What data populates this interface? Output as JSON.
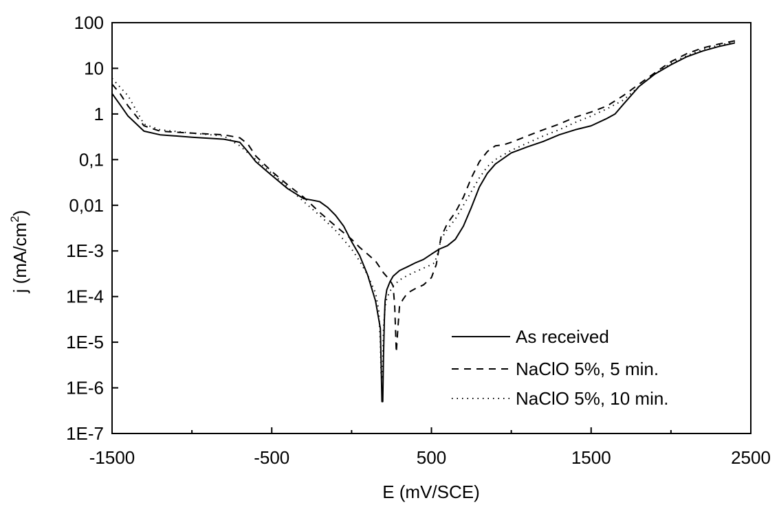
{
  "chart_data": {
    "type": "line",
    "xlabel": "E (mV/SCE)",
    "ylabel": "j (mA/cm²)",
    "ylabel_main": "j (mA/cm",
    "ylabel_sup": "2",
    "ylabel_close": ")",
    "xlim": [
      -1500,
      2500
    ],
    "ylim": [
      1e-07,
      100
    ],
    "yscale": "log",
    "grid": false,
    "legend_position": "bottom-right",
    "x_ticks": [
      -1500,
      -500,
      500,
      1500,
      2500
    ],
    "x_tick_labels": [
      "-1500",
      "-500",
      "500",
      "1500",
      "2500"
    ],
    "y_ticks": [
      1e-07,
      1e-06,
      1e-05,
      0.0001,
      0.001,
      0.01,
      0.1,
      1,
      10,
      100
    ],
    "y_tick_labels": [
      "1E-7",
      "1E-6",
      "1E-5",
      "1E-4",
      "1E-3",
      "0,01",
      "0,1",
      "1",
      "10",
      "100"
    ],
    "series": [
      {
        "name": "As received",
        "style": "solid",
        "color": "#000000",
        "x": [
          -1500,
          -1450,
          -1400,
          -1300,
          -1200,
          -1000,
          -800,
          -700,
          -650,
          -600,
          -500,
          -400,
          -300,
          -250,
          -200,
          -150,
          -100,
          -50,
          0,
          50,
          100,
          150,
          180,
          190,
          195,
          200,
          205,
          210,
          220,
          240,
          260,
          300,
          350,
          400,
          450,
          500,
          550,
          600,
          650,
          700,
          750,
          800,
          850,
          900,
          1000,
          1100,
          1200,
          1300,
          1400,
          1500,
          1600,
          1650,
          1700,
          1800,
          1900,
          2000,
          2100,
          2200,
          2300,
          2400
        ],
        "y": [
          2.8,
          1.6,
          0.9,
          0.42,
          0.35,
          0.31,
          0.28,
          0.24,
          0.15,
          0.09,
          0.045,
          0.023,
          0.014,
          0.013,
          0.012,
          0.009,
          0.006,
          0.0035,
          0.0016,
          0.0008,
          0.0003,
          8e-05,
          2e-05,
          5e-07,
          5e-07,
          5e-06,
          3e-05,
          8e-05,
          0.00014,
          0.00021,
          0.00028,
          0.00037,
          0.00045,
          0.00055,
          0.00065,
          0.00085,
          0.0011,
          0.0013,
          0.0018,
          0.0035,
          0.009,
          0.025,
          0.05,
          0.08,
          0.14,
          0.19,
          0.25,
          0.35,
          0.45,
          0.55,
          0.8,
          1.0,
          1.6,
          4.0,
          7.5,
          12,
          18,
          24,
          30,
          36
        ]
      },
      {
        "name": "NaClO 5%, 5 min.",
        "style": "dashed",
        "color": "#000000",
        "x": [
          -1500,
          -1450,
          -1400,
          -1300,
          -1200,
          -1000,
          -800,
          -700,
          -650,
          -600,
          -500,
          -400,
          -300,
          -200,
          -100,
          0,
          50,
          100,
          150,
          200,
          230,
          250,
          260,
          270,
          280,
          290,
          300,
          320,
          350,
          400,
          450,
          500,
          530,
          560,
          600,
          650,
          700,
          750,
          800,
          850,
          900,
          950,
          1000,
          1100,
          1200,
          1300,
          1400,
          1500,
          1600,
          1700,
          1800,
          1900,
          2000,
          2100,
          2200,
          2300,
          2400
        ],
        "y": [
          4.5,
          2.8,
          1.5,
          0.55,
          0.42,
          0.38,
          0.35,
          0.3,
          0.22,
          0.12,
          0.055,
          0.028,
          0.015,
          0.007,
          0.0035,
          0.0018,
          0.0012,
          0.00085,
          0.0006,
          0.00033,
          0.00025,
          0.0002,
          0.00017,
          6e-05,
          6e-06,
          2e-05,
          6e-05,
          8.5e-05,
          0.00012,
          0.00015,
          0.00018,
          0.00026,
          0.0005,
          0.002,
          0.004,
          0.007,
          0.015,
          0.04,
          0.09,
          0.15,
          0.2,
          0.21,
          0.24,
          0.33,
          0.45,
          0.6,
          0.85,
          1.1,
          1.5,
          2.5,
          4.5,
          8,
          14,
          21,
          28,
          34,
          40
        ]
      },
      {
        "name": "NaClO 5%, 10 min.",
        "style": "dotted",
        "color": "#000000",
        "x": [
          -1500,
          -1400,
          -1300,
          -1200,
          -1000,
          -800,
          -700,
          -600,
          -500,
          -400,
          -300,
          -200,
          -100,
          0,
          50,
          100,
          150,
          170,
          180,
          185,
          190,
          195,
          200,
          210,
          220,
          240,
          260,
          300,
          350,
          400,
          450,
          500,
          520,
          540,
          560,
          600,
          650,
          700,
          750,
          800,
          850,
          900,
          1000,
          1100,
          1200,
          1300,
          1400,
          1500,
          1600,
          1700,
          1800,
          1900,
          2000,
          2100,
          2200,
          2300,
          2400
        ],
        "y": [
          6,
          2.5,
          0.6,
          0.45,
          0.38,
          0.33,
          0.2,
          0.1,
          0.05,
          0.025,
          0.012,
          0.006,
          0.0028,
          0.0011,
          0.0006,
          0.0003,
          0.00012,
          5e-05,
          1e-05,
          2e-06,
          1.5e-06,
          4e-06,
          2e-05,
          6e-05,
          9e-05,
          0.00013,
          0.00017,
          0.00023,
          0.00029,
          0.00035,
          0.00042,
          0.0005,
          0.00055,
          0.0009,
          0.0018,
          0.003,
          0.005,
          0.01,
          0.02,
          0.04,
          0.07,
          0.1,
          0.16,
          0.23,
          0.33,
          0.45,
          0.65,
          0.9,
          1.3,
          2.0,
          4.0,
          7.5,
          13,
          19,
          26,
          32,
          38
        ]
      }
    ]
  }
}
